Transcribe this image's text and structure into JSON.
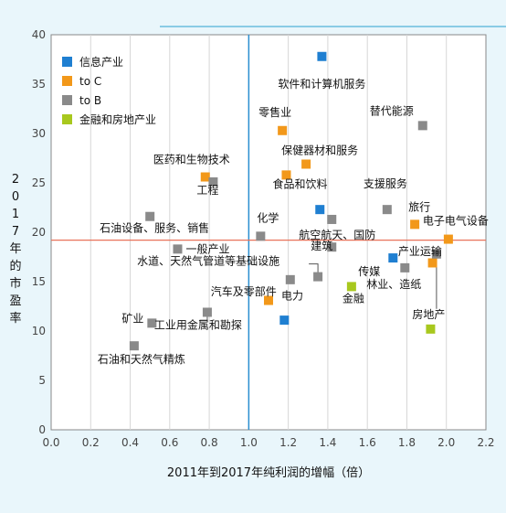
{
  "chart_data": {
    "type": "scatter",
    "title": "",
    "xlabel": "2011年到2017年纯利润的增幅（倍）",
    "ylabel": "2017年的市盈率",
    "xlim": [
      0,
      2.2
    ],
    "ylim": [
      0,
      40
    ],
    "x_ticks": [
      "0.0",
      "0.2",
      "0.4",
      "0.6",
      "0.8",
      "1.0",
      "1.2",
      "1.4",
      "1.6",
      "1.8",
      "2.0",
      "2.2"
    ],
    "y_ticks": [
      "0",
      "5",
      "10",
      "15",
      "20",
      "25",
      "30",
      "35",
      "40"
    ],
    "grid": "vertical",
    "reference_lines": {
      "x": 1.0,
      "y": 19.2
    },
    "legend_position": "top-left",
    "series": [
      {
        "name": "信息产业",
        "color": "#1f7fd1",
        "points": [
          {
            "x": 1.37,
            "y": 37.8,
            "label": "软件和计算机服务"
          },
          {
            "x": 1.36,
            "y": 22.3,
            "label": ""
          },
          {
            "x": 1.73,
            "y": 17.4,
            "label": "传媒"
          },
          {
            "x": 1.18,
            "y": 11.1,
            "label": ""
          }
        ]
      },
      {
        "name": "to C",
        "color": "#f2981a",
        "points": [
          {
            "x": 1.17,
            "y": 30.3,
            "label": "零售业"
          },
          {
            "x": 1.29,
            "y": 26.9,
            "label": "保健器材和服务"
          },
          {
            "x": 1.19,
            "y": 25.8,
            "label": "食品和饮料"
          },
          {
            "x": 0.78,
            "y": 25.6,
            "label": "医药和生物技术"
          },
          {
            "x": 1.84,
            "y": 20.8,
            "label": "旅行"
          },
          {
            "x": 2.01,
            "y": 19.3,
            "label": "电子电气设备"
          },
          {
            "x": 1.93,
            "y": 16.9,
            "label": ""
          },
          {
            "x": 1.1,
            "y": 13.1,
            "label": "电力"
          }
        ]
      },
      {
        "name": "to B",
        "color": "#8a8a8a",
        "points": [
          {
            "x": 1.88,
            "y": 30.8,
            "label": "替代能源"
          },
          {
            "x": 0.82,
            "y": 25.1,
            "label": "工程"
          },
          {
            "x": 1.7,
            "y": 22.3,
            "label": "支援服务"
          },
          {
            "x": 0.5,
            "y": 21.6,
            "label": "石油设备、服务、销售"
          },
          {
            "x": 1.42,
            "y": 21.3,
            "label": "航空航天、国防"
          },
          {
            "x": 1.06,
            "y": 19.6,
            "label": "化学"
          },
          {
            "x": 0.64,
            "y": 18.3,
            "label": "一般产业"
          },
          {
            "x": 1.42,
            "y": 18.5,
            "label": "建筑"
          },
          {
            "x": 1.95,
            "y": 17.8,
            "label": "产业运输"
          },
          {
            "x": 1.79,
            "y": 16.4,
            "label": "林业、造纸"
          },
          {
            "x": 1.35,
            "y": 15.5,
            "label": "水道、天然气管道等基础设施"
          },
          {
            "x": 1.21,
            "y": 15.2,
            "label": "汽车及零部件"
          },
          {
            "x": 0.79,
            "y": 11.9,
            "label": "工业用金属和勘探"
          },
          {
            "x": 0.51,
            "y": 10.8,
            "label": "矿业"
          },
          {
            "x": 0.42,
            "y": 8.5,
            "label": "石油和天然气精炼"
          }
        ]
      },
      {
        "name": "金融和房地产业",
        "color": "#a8c81e",
        "points": [
          {
            "x": 1.52,
            "y": 14.5,
            "label": "金融"
          },
          {
            "x": 1.92,
            "y": 10.2,
            "label": "房地产"
          }
        ]
      }
    ]
  }
}
